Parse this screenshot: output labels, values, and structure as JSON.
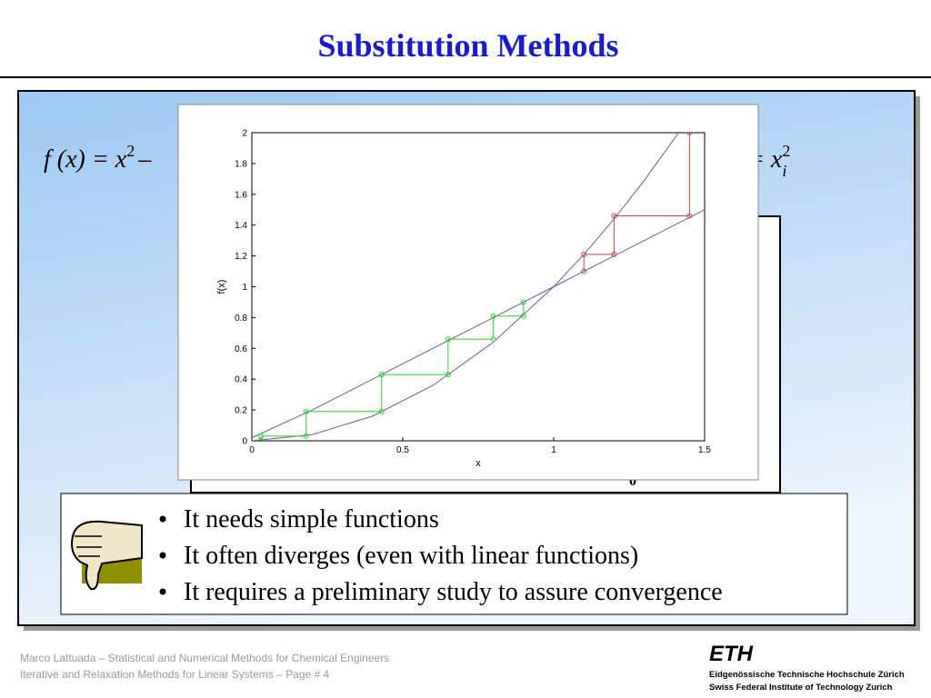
{
  "slide": {
    "title": "Substitution Methods",
    "formula_left": {
      "text": "f (x) = x",
      "sup": "2",
      "tail": "–"
    },
    "formula_right": {
      "text": "= x",
      "sub": "i",
      "sup": "2"
    },
    "background_window_label": "0",
    "bullets": [
      "It needs simple functions",
      "It often diverges (even with linear functions)",
      "It requires a preliminary study to assure convergence"
    ],
    "footer": [
      "Marco Lattuada – Statistical and Numerical Methods for Chemical Engineers",
      "Iterative and Relaxation Methods for Linear Systems – Page #  4"
    ],
    "logo": {
      "mark": "ETH",
      "line1": "Eidgenössische Technische Hochschule Zürich",
      "line2": "Swiss Federal Institute of Technology Zurich"
    }
  },
  "chart_data": {
    "type": "line",
    "xlabel": "x",
    "ylabel": "f(x)",
    "xlim": [
      0,
      1.5
    ],
    "ylim": [
      0,
      2
    ],
    "xticks": [
      0,
      0.5,
      1,
      1.5
    ],
    "yticks": [
      0,
      0.2,
      0.4,
      0.6,
      0.8,
      1,
      1.2,
      1.4,
      1.6,
      1.8,
      2
    ],
    "series": [
      {
        "color": "#6060a8",
        "x": [
          0,
          0.2,
          0.4,
          0.6,
          0.8,
          1,
          1.2,
          1.4,
          1.5
        ],
        "values": [
          0.02,
          0.2,
          0.4,
          0.6,
          0.8,
          1,
          1.2,
          1.4,
          1.5
        ]
      },
      {
        "color": "#6060a8",
        "x": [
          0,
          0.2,
          0.4,
          0.6,
          0.8,
          1,
          1.1,
          1.2,
          1.3,
          1.414
        ],
        "values": [
          0,
          0.04,
          0.16,
          0.36,
          0.64,
          1,
          1.21,
          1.44,
          1.69,
          2
        ]
      },
      {
        "color": "#33cc33",
        "marker": "circle",
        "x": [
          0.03,
          0.03,
          0.18,
          0.18,
          0.43,
          0.43,
          0.65,
          0.65,
          0.8,
          0.8,
          0.9,
          0.9
        ],
        "values": [
          0.001,
          0.03,
          0.03,
          0.19,
          0.19,
          0.43,
          0.43,
          0.66,
          0.66,
          0.81,
          0.81,
          0.9
        ]
      },
      {
        "color": "#c04848",
        "marker": "circle",
        "x": [
          1.1,
          1.1,
          1.2,
          1.2,
          1.45,
          1.45
        ],
        "values": [
          1.1,
          1.21,
          1.21,
          1.46,
          1.46,
          2
        ]
      }
    ]
  }
}
